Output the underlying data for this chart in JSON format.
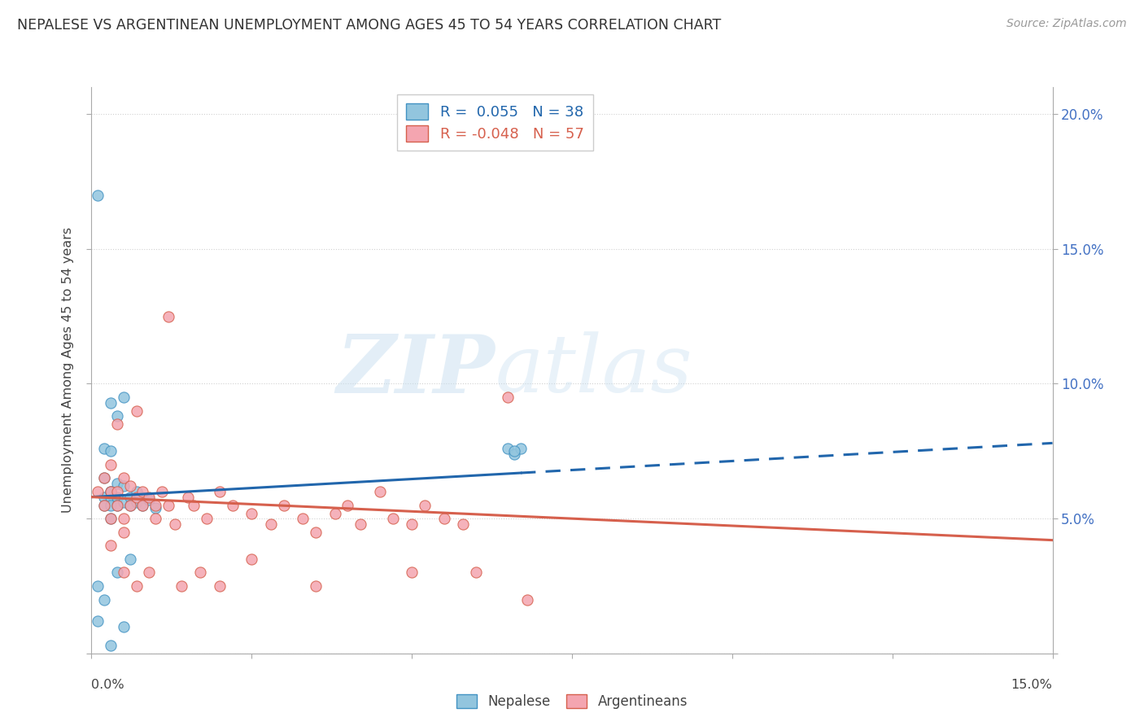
{
  "title": "NEPALESE VS ARGENTINEAN UNEMPLOYMENT AMONG AGES 45 TO 54 YEARS CORRELATION CHART",
  "source": "Source: ZipAtlas.com",
  "ylabel": "Unemployment Among Ages 45 to 54 years",
  "xlim": [
    0.0,
    0.15
  ],
  "ylim": [
    0.0,
    0.21
  ],
  "yticks": [
    0.0,
    0.05,
    0.1,
    0.15,
    0.2
  ],
  "ytick_labels": [
    "",
    "5.0%",
    "10.0%",
    "15.0%",
    "20.0%"
  ],
  "nepalese_color": "#92c5de",
  "argentinean_color": "#f4a5b0",
  "nepalese_edge_color": "#4393c3",
  "argentinean_edge_color": "#d6604d",
  "nepalese_line_color": "#2166ac",
  "argentinean_line_color": "#d6604d",
  "legend_r1_color": "#2166ac",
  "legend_r2_color": "#d6604d",
  "nepalese_x": [
    0.001,
    0.001,
    0.001,
    0.002,
    0.002,
    0.002,
    0.002,
    0.002,
    0.003,
    0.003,
    0.003,
    0.003,
    0.003,
    0.003,
    0.003,
    0.004,
    0.004,
    0.004,
    0.004,
    0.004,
    0.005,
    0.005,
    0.005,
    0.005,
    0.006,
    0.006,
    0.006,
    0.007,
    0.007,
    0.008,
    0.008,
    0.009,
    0.01,
    0.065,
    0.066,
    0.067,
    0.066,
    0.003
  ],
  "nepalese_y": [
    0.17,
    0.025,
    0.012,
    0.076,
    0.065,
    0.058,
    0.055,
    0.02,
    0.093,
    0.075,
    0.06,
    0.058,
    0.055,
    0.05,
    0.003,
    0.088,
    0.063,
    0.058,
    0.03,
    0.055,
    0.095,
    0.062,
    0.056,
    0.01,
    0.058,
    0.055,
    0.035,
    0.06,
    0.056,
    0.058,
    0.055,
    0.057,
    0.054,
    0.076,
    0.074,
    0.076,
    0.075,
    0.06
  ],
  "argentinean_x": [
    0.001,
    0.002,
    0.002,
    0.003,
    0.003,
    0.003,
    0.004,
    0.004,
    0.004,
    0.005,
    0.005,
    0.005,
    0.006,
    0.006,
    0.007,
    0.007,
    0.008,
    0.008,
    0.009,
    0.01,
    0.01,
    0.011,
    0.012,
    0.013,
    0.015,
    0.016,
    0.018,
    0.02,
    0.022,
    0.025,
    0.028,
    0.03,
    0.033,
    0.035,
    0.038,
    0.04,
    0.042,
    0.045,
    0.047,
    0.05,
    0.052,
    0.055,
    0.058,
    0.06,
    0.065,
    0.068,
    0.003,
    0.005,
    0.007,
    0.009,
    0.012,
    0.014,
    0.017,
    0.02,
    0.025,
    0.035,
    0.05
  ],
  "argentinean_y": [
    0.06,
    0.065,
    0.055,
    0.07,
    0.06,
    0.05,
    0.085,
    0.06,
    0.055,
    0.065,
    0.05,
    0.045,
    0.062,
    0.055,
    0.058,
    0.09,
    0.055,
    0.06,
    0.058,
    0.055,
    0.05,
    0.06,
    0.055,
    0.048,
    0.058,
    0.055,
    0.05,
    0.06,
    0.055,
    0.052,
    0.048,
    0.055,
    0.05,
    0.045,
    0.052,
    0.055,
    0.048,
    0.06,
    0.05,
    0.048,
    0.055,
    0.05,
    0.048,
    0.03,
    0.095,
    0.02,
    0.04,
    0.03,
    0.025,
    0.03,
    0.125,
    0.025,
    0.03,
    0.025,
    0.035,
    0.025,
    0.03
  ],
  "nep_line_x_solid_end": 0.067,
  "nep_line_y_start": 0.058,
  "nep_line_y_solid_end": 0.07,
  "nep_line_y_end": 0.078,
  "arg_line_y_start": 0.058,
  "arg_line_y_end": 0.042
}
